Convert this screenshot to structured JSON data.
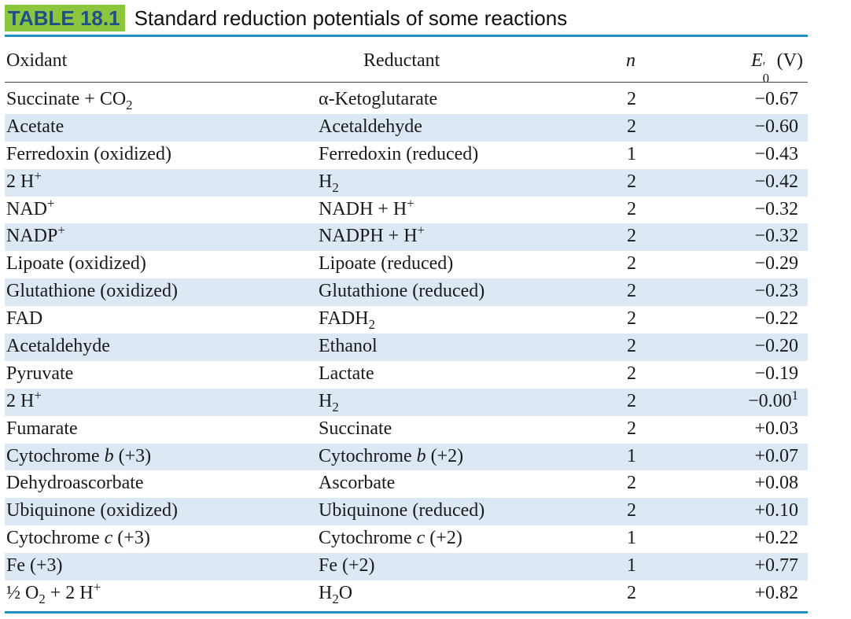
{
  "caption": {
    "label": "TABLE 18.1",
    "title": "Standard reduction potentials of some reactions"
  },
  "headers": {
    "oxidant": "Oxidant",
    "reductant": "Reductant",
    "n": "n",
    "e0_symbol": "E",
    "e0_prime": "′",
    "e0_sub": "0",
    "e0_unit": " (V)"
  },
  "rows": [
    {
      "ox": "Succinate + CO",
      "ox_sub": "2",
      "red": "α-Ketoglutarate",
      "n": "2",
      "e": "−0.67"
    },
    {
      "ox": "Acetate",
      "red": "Acetaldehyde",
      "n": "2",
      "e": "−0.60"
    },
    {
      "ox": "Ferredoxin (oxidized)",
      "red": "Ferredoxin (reduced)",
      "n": "1",
      "e": "−0.43"
    },
    {
      "ox": "2 H",
      "ox_sup": "+",
      "red": "H",
      "red_sub": "2",
      "n": "2",
      "e": "−0.42"
    },
    {
      "ox": "NAD",
      "ox_sup": "+",
      "red": "NADH + H",
      "red_sup": "+",
      "n": "2",
      "e": "−0.32"
    },
    {
      "ox": "NADP",
      "ox_sup": "+",
      "red": "NADPH + H",
      "red_sup": "+",
      "n": "2",
      "e": "−0.32"
    },
    {
      "ox": "Lipoate (oxidized)",
      "red": "Lipoate (reduced)",
      "n": "2",
      "e": "−0.29"
    },
    {
      "ox": "Glutathione (oxidized)",
      "red": "Glutathione (reduced)",
      "n": "2",
      "e": "−0.23"
    },
    {
      "ox": "FAD",
      "red": "FADH",
      "red_sub": "2",
      "n": "2",
      "e": "−0.22"
    },
    {
      "ox": "Acetaldehyde",
      "red": "Ethanol",
      "n": "2",
      "e": "−0.20"
    },
    {
      "ox": "Pyruvate",
      "red": "Lactate",
      "n": "2",
      "e": "−0.19"
    },
    {
      "ox": "2 H",
      "ox_sup": "+",
      "red": "H",
      "red_sub": "2",
      "n": "2",
      "e": "−0.00",
      "e_sup": "1"
    },
    {
      "ox": "Fumarate",
      "red": "Succinate",
      "n": "2",
      "e": "+0.03"
    },
    {
      "ox": "Cytochrome ",
      "ox_ital": "b",
      "ox_tail": " (+3)",
      "red": "Cytochrome ",
      "red_ital": "b",
      "red_tail": " (+2)",
      "n": "1",
      "e": "+0.07"
    },
    {
      "ox": "Dehydroascorbate",
      "red": "Ascorbate",
      "n": "2",
      "e": "+0.08"
    },
    {
      "ox": "Ubiquinone (oxidized)",
      "red": "Ubiquinone (reduced)",
      "n": "2",
      "e": "+0.10"
    },
    {
      "ox": "Cytochrome ",
      "ox_ital": "c",
      "ox_tail": " (+3)",
      "red": "Cytochrome ",
      "red_ital": "c",
      "red_tail": " (+2)",
      "n": "1",
      "e": "+0.22"
    },
    {
      "ox": "Fe (+3)",
      "red": "Fe (+2)",
      "n": "1",
      "e": "+0.77"
    },
    {
      "ox": "½ O",
      "ox_sub": "2",
      "ox_tail": " + 2 H",
      "ox_tail_sup": "+",
      "red": "H",
      "red_sub": "2",
      "red_tail": "O",
      "n": "2",
      "e": "+0.82"
    }
  ],
  "colors": {
    "label_bg": "#8cc63f",
    "label_text": "#1f4f88",
    "rule": "#1f8fc8",
    "alt_row": "#dce9f5"
  }
}
